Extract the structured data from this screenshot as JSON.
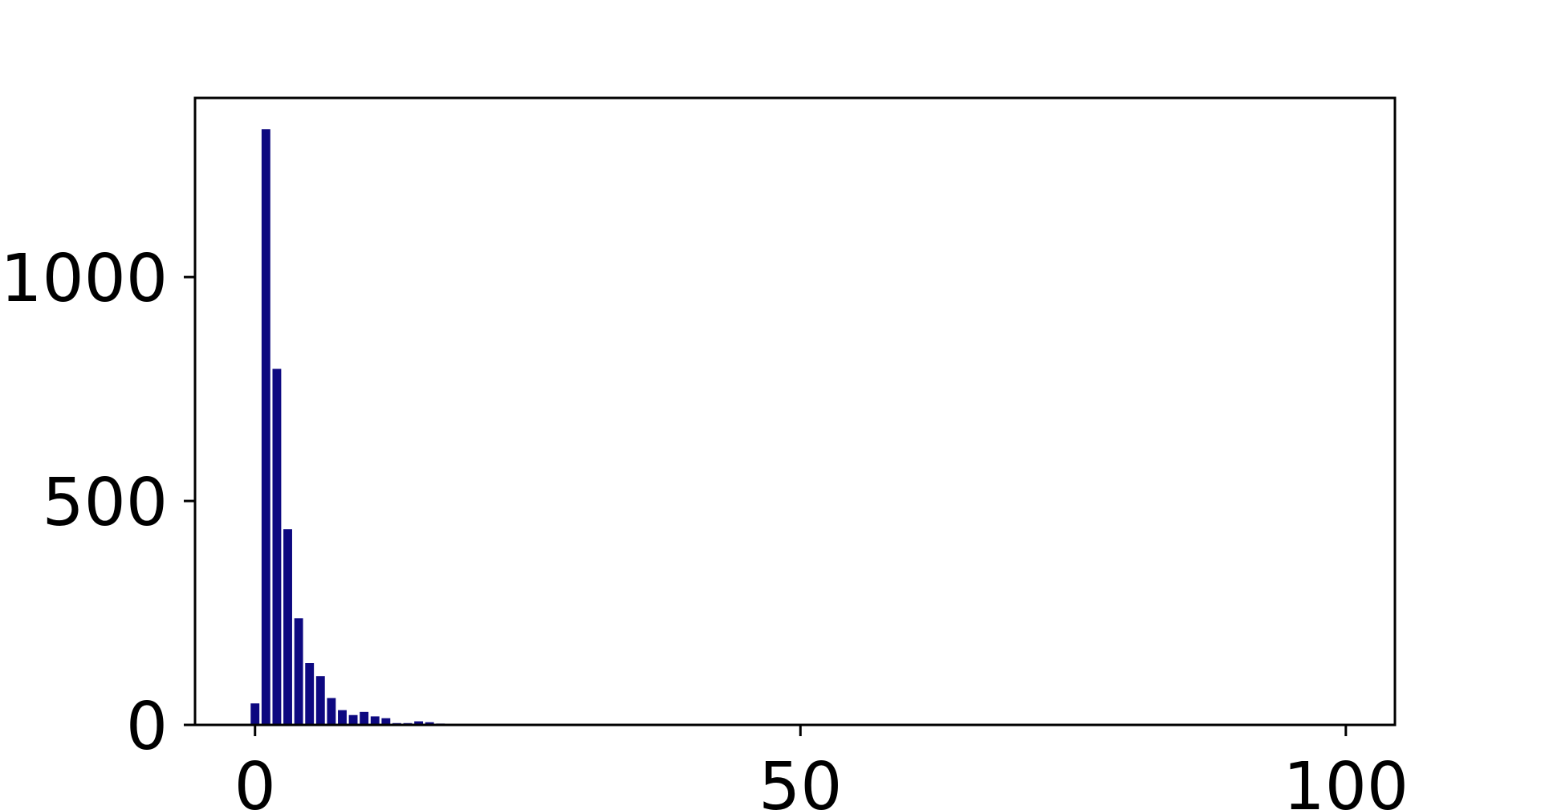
{
  "chart_data": {
    "type": "bar",
    "title": "",
    "xlabel": "",
    "ylabel": "",
    "x": [
      0,
      1,
      2,
      3,
      4,
      5,
      6,
      7,
      8,
      9,
      10,
      11,
      12,
      13,
      14,
      15,
      16,
      17
    ],
    "values": [
      48,
      1330,
      795,
      437,
      238,
      138,
      109,
      60,
      33,
      22,
      29,
      19,
      15,
      4,
      4,
      8,
      6,
      3
    ],
    "xlim": [
      -5.5,
      104.5
    ],
    "ylim": [
      0,
      1400
    ],
    "xticks": [
      0,
      50,
      100
    ],
    "xtick_labels": [
      "0",
      "50",
      "100"
    ],
    "yticks": [
      0,
      500,
      1000
    ],
    "ytick_labels": [
      "0",
      "500",
      "1000"
    ],
    "bar_color": "#0d0880",
    "grid": false,
    "legend": "none"
  }
}
